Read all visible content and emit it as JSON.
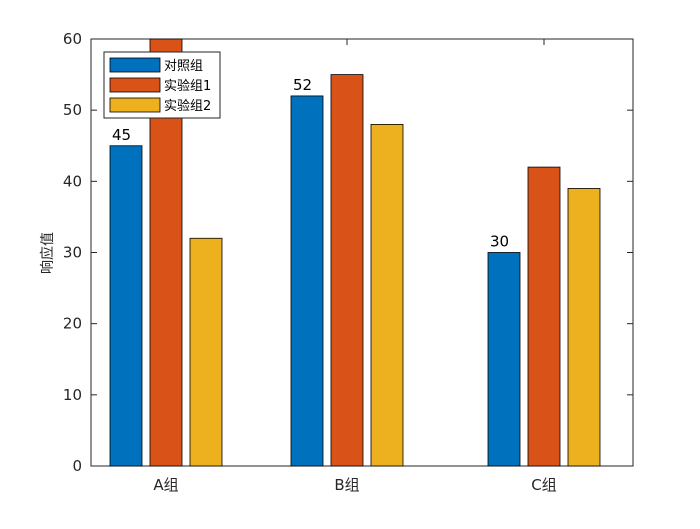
{
  "chart_data": {
    "type": "bar",
    "categories": [
      "A组",
      "B组",
      "C组"
    ],
    "series": [
      {
        "name": "对照组",
        "values": [
          45,
          52,
          30
        ],
        "color": "#0072BD"
      },
      {
        "name": "实验组1",
        "values": [
          60,
          55,
          42
        ],
        "color": "#D95319"
      },
      {
        "name": "实验组2",
        "values": [
          32,
          48,
          39
        ],
        "color": "#EDB120"
      }
    ],
    "ylabel": "响应值",
    "ylim": [
      0,
      60
    ],
    "yticks": [
      0,
      10,
      20,
      30,
      40,
      50,
      60
    ],
    "grid": false,
    "legend_position": "top-left",
    "data_labels": [
      {
        "series": 0,
        "category": 0,
        "text": "45"
      },
      {
        "series": 0,
        "category": 1,
        "text": "52"
      },
      {
        "series": 0,
        "category": 2,
        "text": "30"
      }
    ]
  }
}
